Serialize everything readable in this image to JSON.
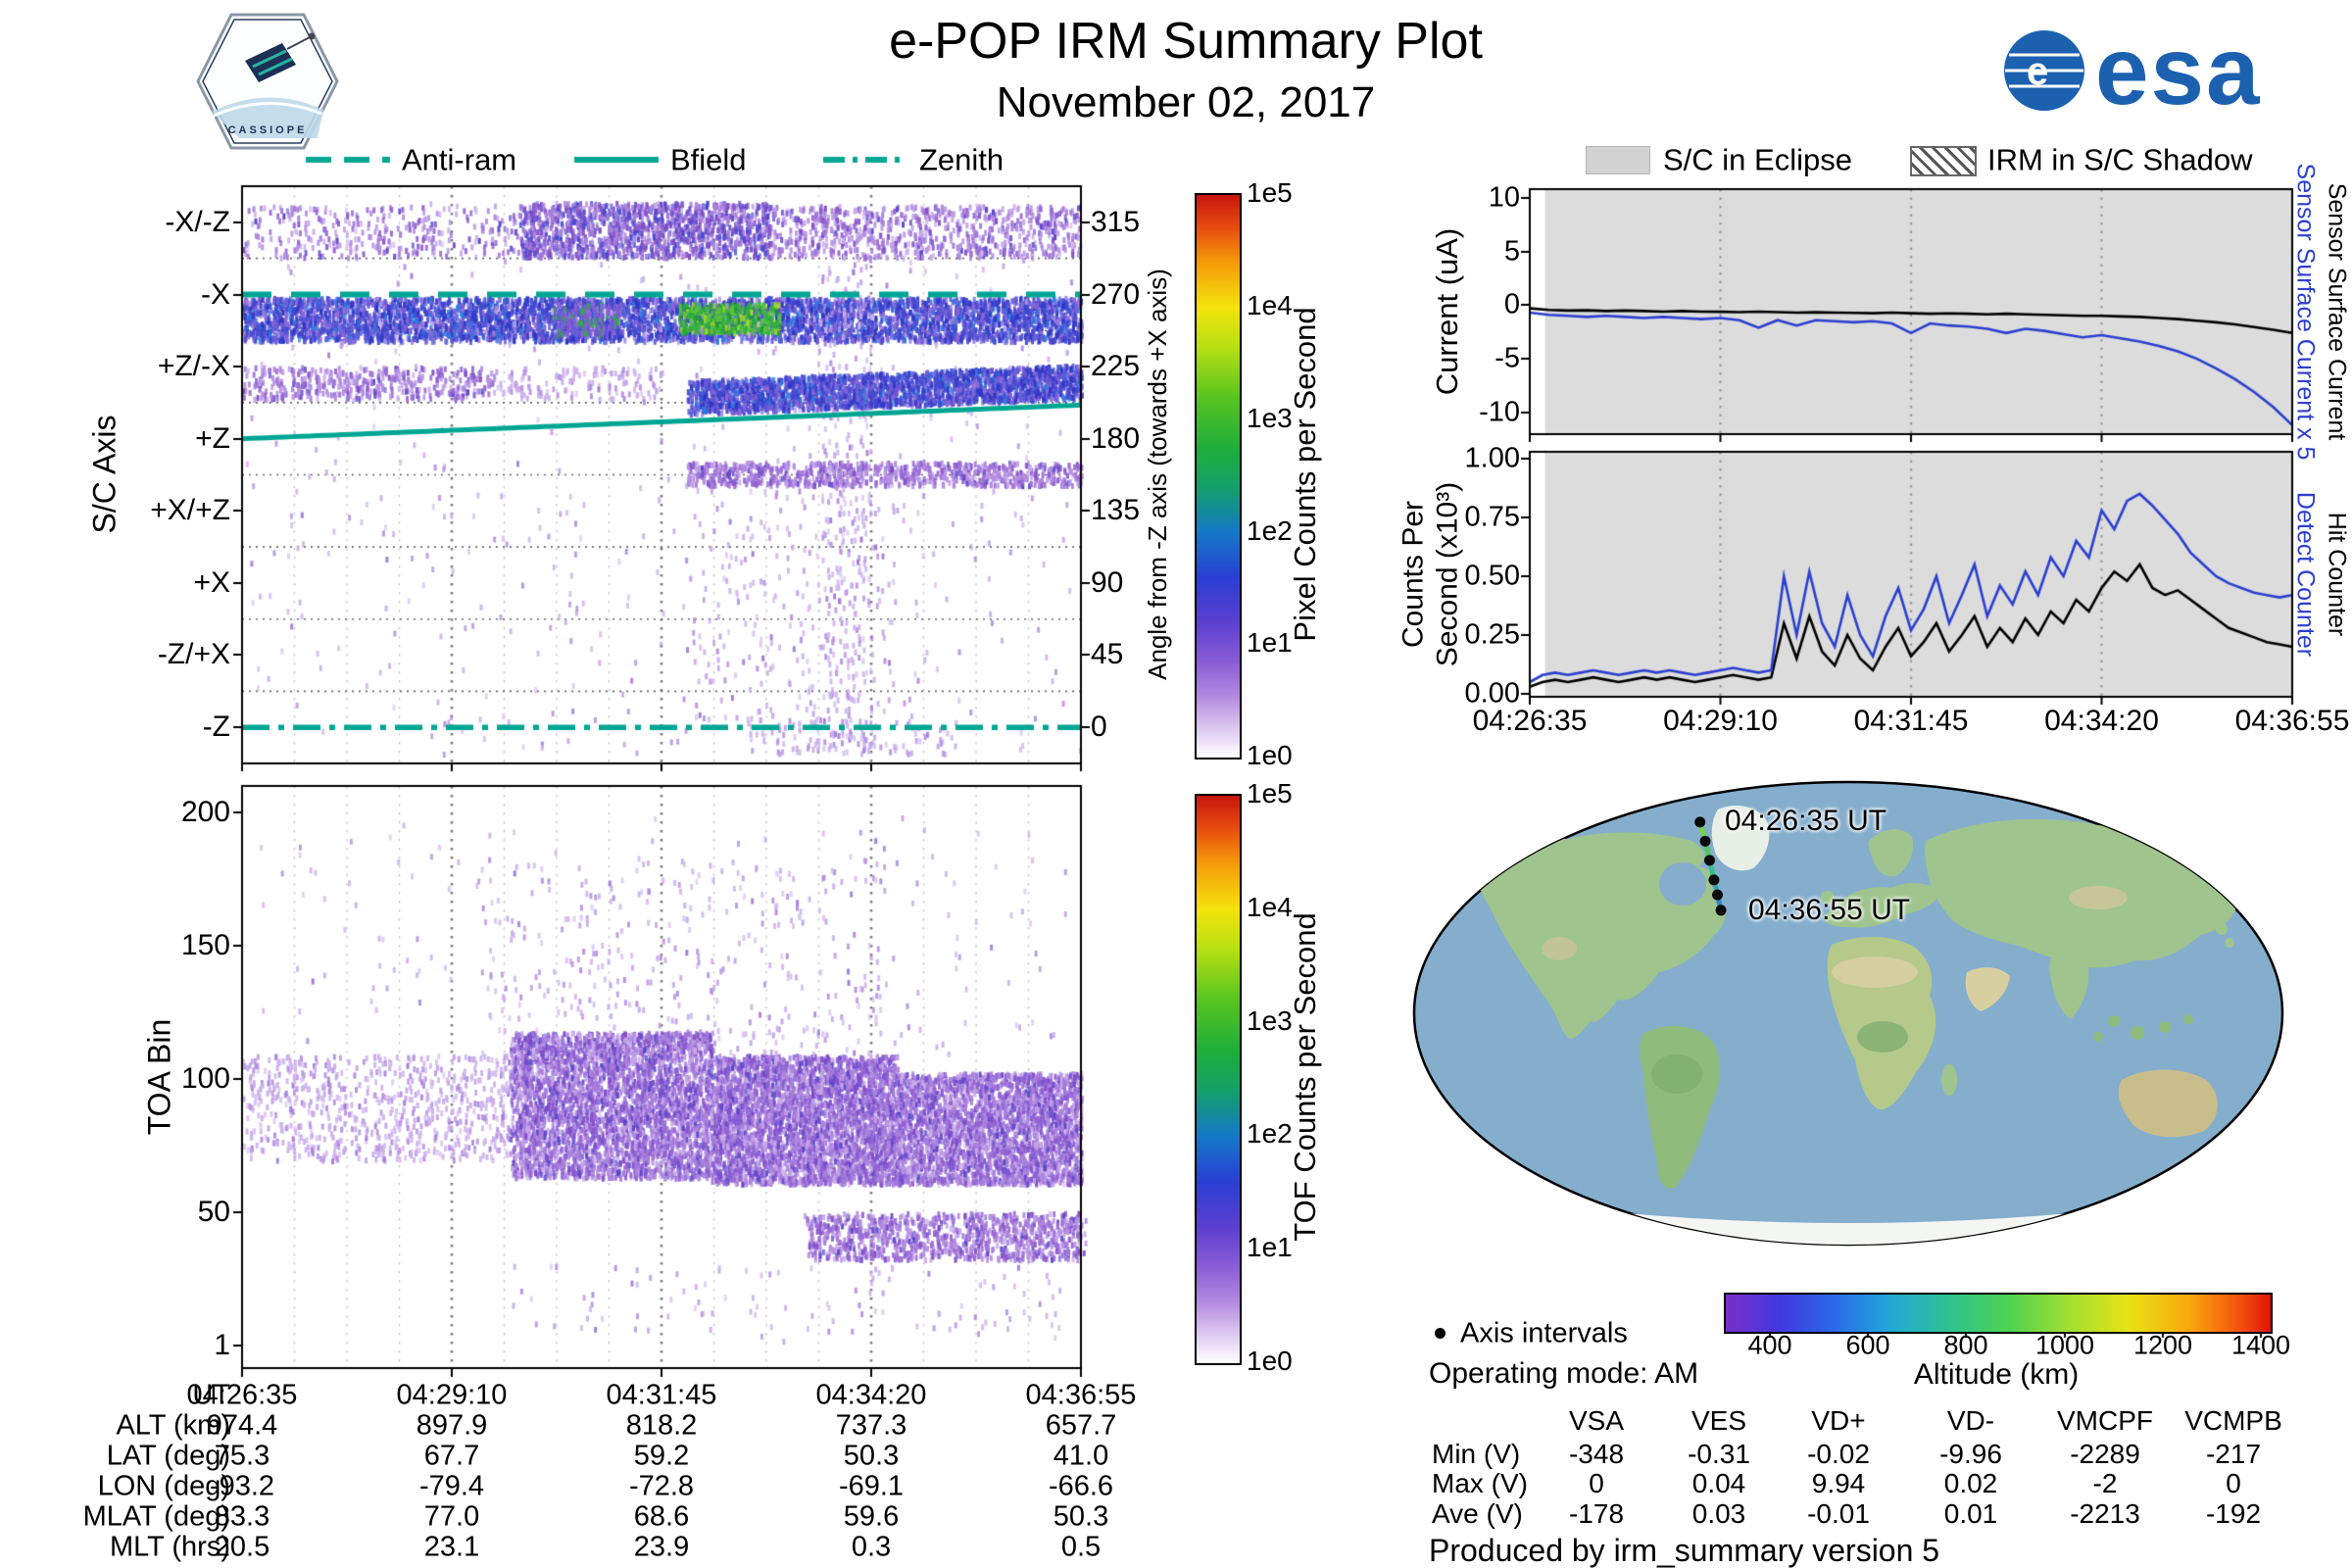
{
  "header": {
    "title": "e-POP IRM Summary Plot",
    "date": "November 02, 2017",
    "esa_label": "esa",
    "mission_label": "CASSIOPE"
  },
  "left_legend": {
    "line_color": "#00a693",
    "items": [
      {
        "label": "Anti-ram",
        "style": "dashed"
      },
      {
        "label": "Bfield",
        "style": "solid"
      },
      {
        "label": "Zenith",
        "style": "dash-dot"
      }
    ]
  },
  "right_legend": {
    "eclipse_label": "S/C in Eclipse",
    "shadow_label": "IRM in S/C Shadow"
  },
  "axis_panel": {
    "ylabel": "S/C Axis",
    "yticks_left": [
      "-X/-Z",
      "-X",
      "+Z/-X",
      "+Z",
      "+X/+Z",
      "+X",
      "-Z/+X",
      "-Z"
    ],
    "yticks_right": [
      "315",
      "270",
      "225",
      "180",
      "135",
      "90",
      "45",
      "0"
    ],
    "right_axis_label": "Angle from -Z axis (towards +X axis)",
    "colorbar": {
      "label": "Pixel Counts per Second",
      "ticks": [
        "1e5",
        "1e4",
        "1e3",
        "1e2",
        "1e1",
        "1e0"
      ]
    }
  },
  "toa_panel": {
    "ylabel": "TOA Bin",
    "yticks": [
      "200",
      "150",
      "100",
      "50",
      "1"
    ],
    "colorbar": {
      "label": "TOF Counts per Second",
      "ticks": [
        "1e5",
        "1e4",
        "1e3",
        "1e2",
        "1e1",
        "1e0"
      ]
    }
  },
  "current_panel": {
    "ylabel": "Current (uA)",
    "yticks": [
      "10",
      "5",
      "0",
      "-5",
      "-10"
    ],
    "right_label_blue": "Sensor Surface Current x 5",
    "right_label_black": "Sensor Surface Current"
  },
  "counts_panel": {
    "ylabel_line1": "Counts Per",
    "ylabel_line2": "Second (x10³)",
    "yticks": [
      "1.00",
      "0.75",
      "0.50",
      "0.25",
      "0.00"
    ],
    "right_label_blue": "Detect Counter",
    "right_label_black": "Hit Counter"
  },
  "time_axis": [
    "04:26:35",
    "04:29:10",
    "04:31:45",
    "04:34:20",
    "04:36:55"
  ],
  "bottom_table": {
    "rows": [
      {
        "label": "UT",
        "values": [
          "04:26:35",
          "04:29:10",
          "04:31:45",
          "04:34:20",
          "04:36:55"
        ]
      },
      {
        "label": "ALT (km)",
        "values": [
          "974.4",
          "897.9",
          "818.2",
          "737.3",
          "657.7"
        ]
      },
      {
        "label": "LAT (deg)",
        "values": [
          "75.3",
          "67.7",
          "59.2",
          "50.3",
          "41.0"
        ]
      },
      {
        "label": "LON (deg)",
        "values": [
          "-93.2",
          "-79.4",
          "-72.8",
          "-69.1",
          "-66.6"
        ]
      },
      {
        "label": "MLAT (deg)",
        "values": [
          "83.3",
          "77.0",
          "68.6",
          "59.6",
          "50.3"
        ]
      },
      {
        "label": "MLT (hrs)",
        "values": [
          "20.5",
          "23.1",
          "23.9",
          "0.3",
          "0.5"
        ]
      }
    ]
  },
  "map": {
    "start_label": "04:26:35 UT",
    "end_label": "04:36:55 UT"
  },
  "map_legend": {
    "axis_intervals": "Axis intervals",
    "operating_mode": "Operating mode: AM"
  },
  "altitude_bar": {
    "label": "Altitude (km)",
    "ticks": [
      "400",
      "600",
      "800",
      "1000",
      "1200",
      "1400"
    ]
  },
  "voltage_table": {
    "columns": [
      "VSA",
      "VES",
      "VD+",
      "VD-",
      "VMCPF",
      "VCMPB"
    ],
    "rows": [
      {
        "label": "Min (V)",
        "values": [
          "-348",
          "-0.31",
          "-0.02",
          "-9.96",
          "-2289",
          "-217"
        ]
      },
      {
        "label": "Max (V)",
        "values": [
          "0",
          "0.04",
          "9.94",
          "0.02",
          "-2",
          "0"
        ]
      },
      {
        "label": "Ave (V)",
        "values": [
          "-178",
          "0.03",
          "-0.01",
          "0.01",
          "-2213",
          "-192"
        ]
      }
    ]
  },
  "footer": "Produced by irm_summary version 5",
  "chart_data": [
    {
      "id": "axis_spectrogram",
      "type": "heatmap",
      "x_range_ut": [
        "04:26:35",
        "04:36:55"
      ],
      "ylabel": "S/C Axis",
      "y_axis_right": "Angle from -Z axis (towards +X axis), deg 0-315",
      "color_scale": "log 1e0-1e5 Pixel Counts per Second, white-purple-blue-green-yellow-red",
      "overlays": [
        {
          "name": "Anti-ram",
          "angle_deg": 270,
          "style": "dashed"
        },
        {
          "name": "Bfield",
          "angle_deg_start": 180,
          "angle_deg_end": 201,
          "style": "solid"
        },
        {
          "name": "Zenith",
          "angle_deg": 0,
          "style": "dash-dot"
        }
      ],
      "bands": [
        {
          "x": [
            0.0,
            0.33
          ],
          "y": [
            0.03,
            0.12
          ],
          "n": 300,
          "pal": "purple"
        },
        {
          "x": [
            0.33,
            0.63
          ],
          "y": [
            0.025,
            0.12
          ],
          "n": 1400,
          "pal": "purpleblue"
        },
        {
          "x": [
            0.63,
            1.0
          ],
          "y": [
            0.03,
            0.12
          ],
          "n": 750,
          "pal": "purple"
        },
        {
          "x": [
            0.0,
            1.0
          ],
          "y": [
            0.19,
            0.265
          ],
          "n": 5200,
          "pal": "bluedense"
        },
        {
          "x": [
            0.52,
            0.64
          ],
          "y": [
            0.2,
            0.25
          ],
          "n": 450,
          "pal": "green"
        },
        {
          "x": [
            0.37,
            0.45
          ],
          "y": [
            0.2,
            0.255
          ],
          "n": 200,
          "pal": "greenmix"
        },
        {
          "x": [
            0.0,
            0.3
          ],
          "y": [
            0.31,
            0.365
          ],
          "n": 420,
          "pal": "purple"
        },
        {
          "x": [
            0.3,
            0.5
          ],
          "y": [
            0.31,
            0.365
          ],
          "n": 140,
          "pal": "lightpurple"
        },
        {
          "x": [
            0.53,
            1.0
          ],
          "y": [
            0.475,
            0.515
          ],
          "n": 850,
          "pal": "purple"
        },
        {
          "x": [
            0.69,
            0.75
          ],
          "y": [
            0.03,
            0.97
          ],
          "n": 300,
          "pal": "lightpurple"
        },
        {
          "x": [
            0.53,
            0.78
          ],
          "y": [
            0.52,
            0.92
          ],
          "n": 200,
          "pal": "lightpurple"
        },
        {
          "x": [
            0.0,
            1.0
          ],
          "y": [
            0.02,
            0.98
          ],
          "n": 500,
          "pal": "lightpurple"
        },
        {
          "x": [
            0.6,
            0.85
          ],
          "y": [
            0.92,
            0.98
          ],
          "n": 110,
          "pal": "lightpurple"
        }
      ],
      "bfield_band": {
        "x": [
          0.53,
          1.0
        ],
        "n": 2400,
        "pal": "bluedense"
      }
    },
    {
      "id": "toa_spectrogram",
      "type": "heatmap",
      "ylabel": "TOA Bin",
      "ylim": [
        1,
        210
      ],
      "color_scale": "log 1e0-1e5 TOF Counts per Second",
      "bands": [
        {
          "x": [
            0.0,
            0.32
          ],
          "y": [
            0.46,
            0.64
          ],
          "n": 750,
          "pal": "lightpurple"
        },
        {
          "x": [
            0.32,
            0.56
          ],
          "y": [
            0.42,
            0.67
          ],
          "n": 3800,
          "pal": "purpleband",
          "striate": 22
        },
        {
          "x": [
            0.56,
            0.78
          ],
          "y": [
            0.46,
            0.68
          ],
          "n": 3800,
          "pal": "purpleband",
          "striate": 18
        },
        {
          "x": [
            0.78,
            1.0
          ],
          "y": [
            0.49,
            0.68
          ],
          "n": 3000,
          "pal": "purpleband"
        },
        {
          "x": [
            0.675,
            1.0
          ],
          "y": [
            0.73,
            0.81
          ],
          "n": 1000,
          "pal": "purple",
          "striate": 14
        },
        {
          "x": [
            0.28,
            0.78
          ],
          "y": [
            0.12,
            0.46
          ],
          "n": 330,
          "pal": "lightpurple"
        },
        {
          "x": [
            0.02,
            0.98
          ],
          "y": [
            0.05,
            0.46
          ],
          "n": 160,
          "pal": "lightpurple"
        },
        {
          "x": [
            0.3,
            0.98
          ],
          "y": [
            0.82,
            0.95
          ],
          "n": 110,
          "pal": "lightpurple"
        }
      ]
    },
    {
      "id": "sensor_current",
      "type": "line",
      "ylabel": "Current (uA)",
      "ylim": [
        -12.03,
        10.82
      ],
      "eclipse_span": [
        0.02,
        1.0
      ],
      "x_ticks": [
        "04:26:35",
        "04:29:10",
        "04:31:45",
        "04:34:20",
        "04:36:55"
      ],
      "series": [
        {
          "name": "Sensor Surface Current",
          "color": "#000000",
          "y": [
            -0.3,
            -0.45,
            -0.5,
            -0.48,
            -0.55,
            -0.5,
            -0.55,
            -0.6,
            -0.55,
            -0.6,
            -0.62,
            -0.65,
            -0.6,
            -0.65,
            -0.7,
            -0.66,
            -0.7,
            -0.72,
            -0.75,
            -0.7,
            -0.75,
            -0.8,
            -0.76,
            -0.8,
            -0.85,
            -0.8,
            -0.85,
            -0.9,
            -0.95,
            -1.0,
            -1.0,
            -1.05,
            -1.1,
            -1.2,
            -1.3,
            -1.45,
            -1.6,
            -1.8,
            -2.05,
            -2.3,
            -2.6
          ]
        },
        {
          "name": "Sensor Surface Current x 5",
          "color": "#2b3fd0",
          "y": [
            -0.7,
            -0.9,
            -1.0,
            -1.1,
            -1.0,
            -1.1,
            -1.2,
            -1.1,
            -1.2,
            -1.3,
            -1.2,
            -1.4,
            -2.1,
            -1.4,
            -1.9,
            -1.4,
            -1.5,
            -1.6,
            -1.5,
            -1.7,
            -2.6,
            -1.7,
            -1.9,
            -2.0,
            -2.2,
            -2.6,
            -2.2,
            -2.4,
            -2.7,
            -3.0,
            -2.8,
            -3.1,
            -3.4,
            -3.8,
            -4.3,
            -5.0,
            -5.9,
            -6.9,
            -8.1,
            -9.5,
            -11.2
          ]
        }
      ]
    },
    {
      "id": "counters",
      "type": "line",
      "ylabel": "Counts Per Second (x10^3)",
      "ylim": [
        -0.0125,
        1.029
      ],
      "eclipse_span": [
        0.02,
        1.0
      ],
      "x_ticks": [
        "04:26:35",
        "04:29:10",
        "04:31:45",
        "04:34:20",
        "04:36:55"
      ],
      "series": [
        {
          "name": "Hit Counter",
          "color": "#000000",
          "y": [
            0.03,
            0.05,
            0.06,
            0.05,
            0.06,
            0.07,
            0.06,
            0.05,
            0.06,
            0.07,
            0.06,
            0.07,
            0.06,
            0.05,
            0.06,
            0.07,
            0.08,
            0.07,
            0.06,
            0.07,
            0.3,
            0.15,
            0.33,
            0.18,
            0.12,
            0.25,
            0.15,
            0.1,
            0.2,
            0.28,
            0.16,
            0.22,
            0.3,
            0.18,
            0.25,
            0.33,
            0.2,
            0.28,
            0.22,
            0.32,
            0.25,
            0.35,
            0.3,
            0.4,
            0.35,
            0.45,
            0.52,
            0.48,
            0.55,
            0.45,
            0.42,
            0.44,
            0.4,
            0.36,
            0.32,
            0.28,
            0.26,
            0.24,
            0.22,
            0.21,
            0.2
          ]
        },
        {
          "name": "Detect Counter",
          "color": "#2b3fd0",
          "y": [
            0.05,
            0.08,
            0.09,
            0.08,
            0.09,
            0.1,
            0.09,
            0.08,
            0.09,
            0.1,
            0.09,
            0.1,
            0.09,
            0.08,
            0.09,
            0.1,
            0.11,
            0.1,
            0.09,
            0.1,
            0.5,
            0.25,
            0.52,
            0.3,
            0.2,
            0.42,
            0.25,
            0.16,
            0.33,
            0.45,
            0.27,
            0.36,
            0.5,
            0.3,
            0.42,
            0.55,
            0.33,
            0.46,
            0.38,
            0.52,
            0.42,
            0.58,
            0.5,
            0.65,
            0.58,
            0.78,
            0.7,
            0.82,
            0.85,
            0.8,
            0.74,
            0.68,
            0.6,
            0.55,
            0.5,
            0.47,
            0.45,
            0.43,
            0.42,
            0.41,
            0.42
          ]
        }
      ]
    },
    {
      "id": "ground_track",
      "type": "map",
      "start_label": "04:26:35 UT",
      "end_label": "04:36:55 UT",
      "track_points_frac": [
        [
          0.33,
          0.09
        ],
        [
          0.336,
          0.131
        ],
        [
          0.341,
          0.172
        ],
        [
          0.346,
          0.214
        ],
        [
          0.35,
          0.246
        ],
        [
          0.354,
          0.279
        ]
      ],
      "segment_colors": [
        "#77d23f",
        "#4fc860",
        "#35bd8f",
        "#2aa9c0",
        "#2f86d2"
      ]
    }
  ]
}
